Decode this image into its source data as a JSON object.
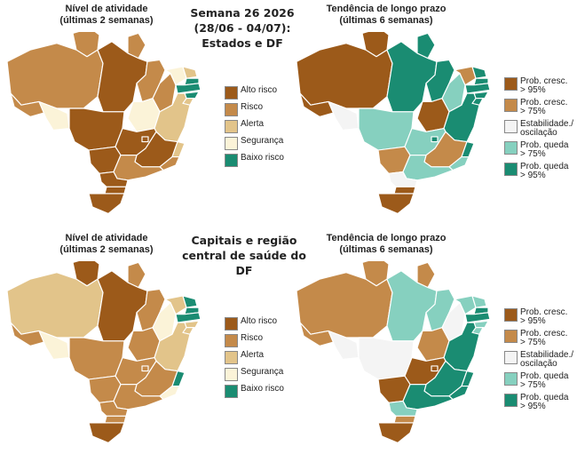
{
  "panels": {
    "top_left_title": "Nível de atividade\n(últimas 2 semanas)",
    "top_right_title": "Tendência de longo prazo\n(últimas 6 semanas)",
    "bottom_left_title": "Nível de atividade\n(últimas 2 semanas)",
    "bottom_right_title": "Tendência de longo prazo\n(últimas 6 semanas)",
    "top_center": "Semana 26 2026\n(28/06 - 04/07):\nEstados e DF",
    "bottom_center": "Capitais e região\ncentral de saúde do DF"
  },
  "activity_legend": [
    {
      "label": "Alto risco",
      "color": "#9c5a1a"
    },
    {
      "label": "Risco",
      "color": "#c48a4a"
    },
    {
      "label": "Alerta",
      "color": "#e2c48a"
    },
    {
      "label": "Segurança",
      "color": "#fbf3d8"
    },
    {
      "label": "Baixo risco",
      "color": "#1a8c72"
    }
  ],
  "trend_legend": [
    {
      "label": "Prob. cresc.\n> 95%",
      "color": "#9c5a1a"
    },
    {
      "label": "Prob. cresc.\n> 75%",
      "color": "#c48a4a"
    },
    {
      "label": "Estabilidade./\noscilação",
      "color": "#f4f4f4"
    },
    {
      "label": "Prob. queda\n> 75%",
      "color": "#86d0bf"
    },
    {
      "label": "Prob. queda\n> 95%",
      "color": "#1a8c72"
    }
  ],
  "maps": {
    "states_activity": {
      "AC": "#c48a4a",
      "AM": "#c48a4a",
      "RR": "#c48a4a",
      "AP": "#c48a4a",
      "PA": "#9c5a1a",
      "RO": "#fbf3d8",
      "MT": "#9c5a1a",
      "TO": "#fbf3d8",
      "MA": "#c48a4a",
      "PI": "#c48a4a",
      "CE": "#fbf3d8",
      "RN": "#e2c48a",
      "PB": "#1a8c72",
      "PE": "#1a8c72",
      "AL": "#1a8c72",
      "SE": "#e2c48a",
      "BA": "#e2c48a",
      "GO": "#9c5a1a",
      "DF": "#9c5a1a",
      "MS": "#9c5a1a",
      "MG": "#9c5a1a",
      "ES": "#e2c48a",
      "RJ": "#c48a4a",
      "SP": "#c48a4a",
      "PR": "#9c5a1a",
      "SC": "#9c5a1a",
      "RS": "#9c5a1a"
    },
    "states_trend": {
      "AC": "#9c5a1a",
      "AM": "#9c5a1a",
      "RR": "#9c5a1a",
      "AP": "#1a8c72",
      "PA": "#1a8c72",
      "RO": "#f4f4f4",
      "MT": "#86d0bf",
      "TO": "#9c5a1a",
      "MA": "#1a8c72",
      "PI": "#86d0bf",
      "CE": "#c48a4a",
      "RN": "#1a8c72",
      "PB": "#1a8c72",
      "PE": "#1a8c72",
      "AL": "#1a8c72",
      "SE": "#1a8c72",
      "BA": "#1a8c72",
      "GO": "#86d0bf",
      "DF": "#1a8c72",
      "MS": "#c48a4a",
      "MG": "#c48a4a",
      "ES": "#1a8c72",
      "RJ": "#86d0bf",
      "SP": "#86d0bf",
      "PR": "#f4f4f4",
      "SC": "#9c5a1a",
      "RS": "#9c5a1a"
    },
    "capitals_activity": {
      "AC": "#c48a4a",
      "AM": "#e2c48a",
      "RR": "#9c5a1a",
      "AP": "#c48a4a",
      "PA": "#9c5a1a",
      "RO": "#fbf3d8",
      "MT": "#c48a4a",
      "TO": "#c48a4a",
      "MA": "#c48a4a",
      "PI": "#fbf3d8",
      "CE": "#e2c48a",
      "RN": "#1a8c72",
      "PB": "#1a8c72",
      "PE": "#1a8c72",
      "AL": "#e2c48a",
      "SE": "#e2c48a",
      "BA": "#e2c48a",
      "GO": "#c48a4a",
      "DF": "#c48a4a",
      "MS": "#c48a4a",
      "MG": "#c48a4a",
      "ES": "#1a8c72",
      "RJ": "#fbf3d8",
      "SP": "#c48a4a",
      "PR": "#c48a4a",
      "SC": "#c48a4a",
      "RS": "#9c5a1a"
    },
    "capitals_trend": {
      "AC": "#c48a4a",
      "AM": "#c48a4a",
      "RR": "#c48a4a",
      "AP": "#c48a4a",
      "PA": "#86d0bf",
      "RO": "#f4f4f4",
      "MT": "#f4f4f4",
      "TO": "#c48a4a",
      "MA": "#86d0bf",
      "PI": "#f4f4f4",
      "CE": "#86d0bf",
      "RN": "#86d0bf",
      "PB": "#1a8c72",
      "PE": "#1a8c72",
      "AL": "#86d0bf",
      "SE": "#86d0bf",
      "BA": "#1a8c72",
      "GO": "#9c5a1a",
      "DF": "#9c5a1a",
      "MS": "#9c5a1a",
      "MG": "#1a8c72",
      "ES": "#1a8c72",
      "RJ": "#1a8c72",
      "SP": "#1a8c72",
      "PR": "#86d0bf",
      "SC": "#c48a4a",
      "RS": "#9c5a1a"
    }
  }
}
